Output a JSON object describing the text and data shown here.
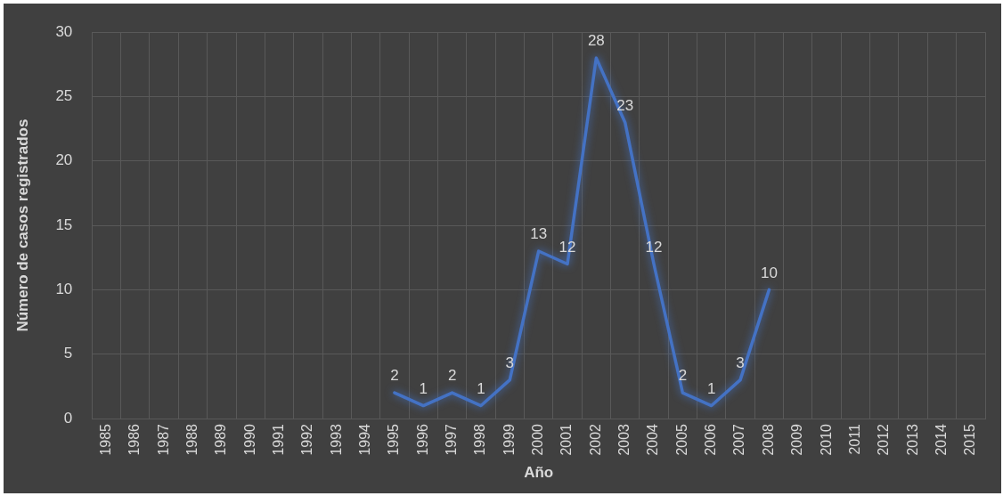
{
  "chart_data": {
    "type": "line",
    "xlabel": "Año",
    "ylabel": "Número de casos registrados",
    "categories": [
      "1985",
      "1986",
      "1987",
      "1988",
      "1989",
      "1990",
      "1991",
      "1992",
      "1993",
      "1994",
      "1995",
      "1996",
      "1997",
      "1998",
      "1999",
      "2000",
      "2001",
      "2002",
      "2003",
      "2004",
      "2005",
      "2006",
      "2007",
      "2008",
      "2009",
      "2010",
      "2011",
      "2012",
      "2013",
      "2014",
      "2015"
    ],
    "values": [
      null,
      null,
      null,
      null,
      null,
      null,
      null,
      null,
      null,
      null,
      2,
      1,
      2,
      1,
      3,
      13,
      12,
      28,
      23,
      12,
      2,
      1,
      3,
      10,
      null,
      null,
      null,
      null,
      null,
      null,
      null
    ],
    "color": "#4472c4",
    "ylim": [
      0,
      30
    ],
    "yticks": [
      0,
      5,
      10,
      15,
      20,
      25,
      30
    ],
    "grid": true,
    "legend": false,
    "marker": "none",
    "line_style": "solid",
    "data_labels": true
  }
}
